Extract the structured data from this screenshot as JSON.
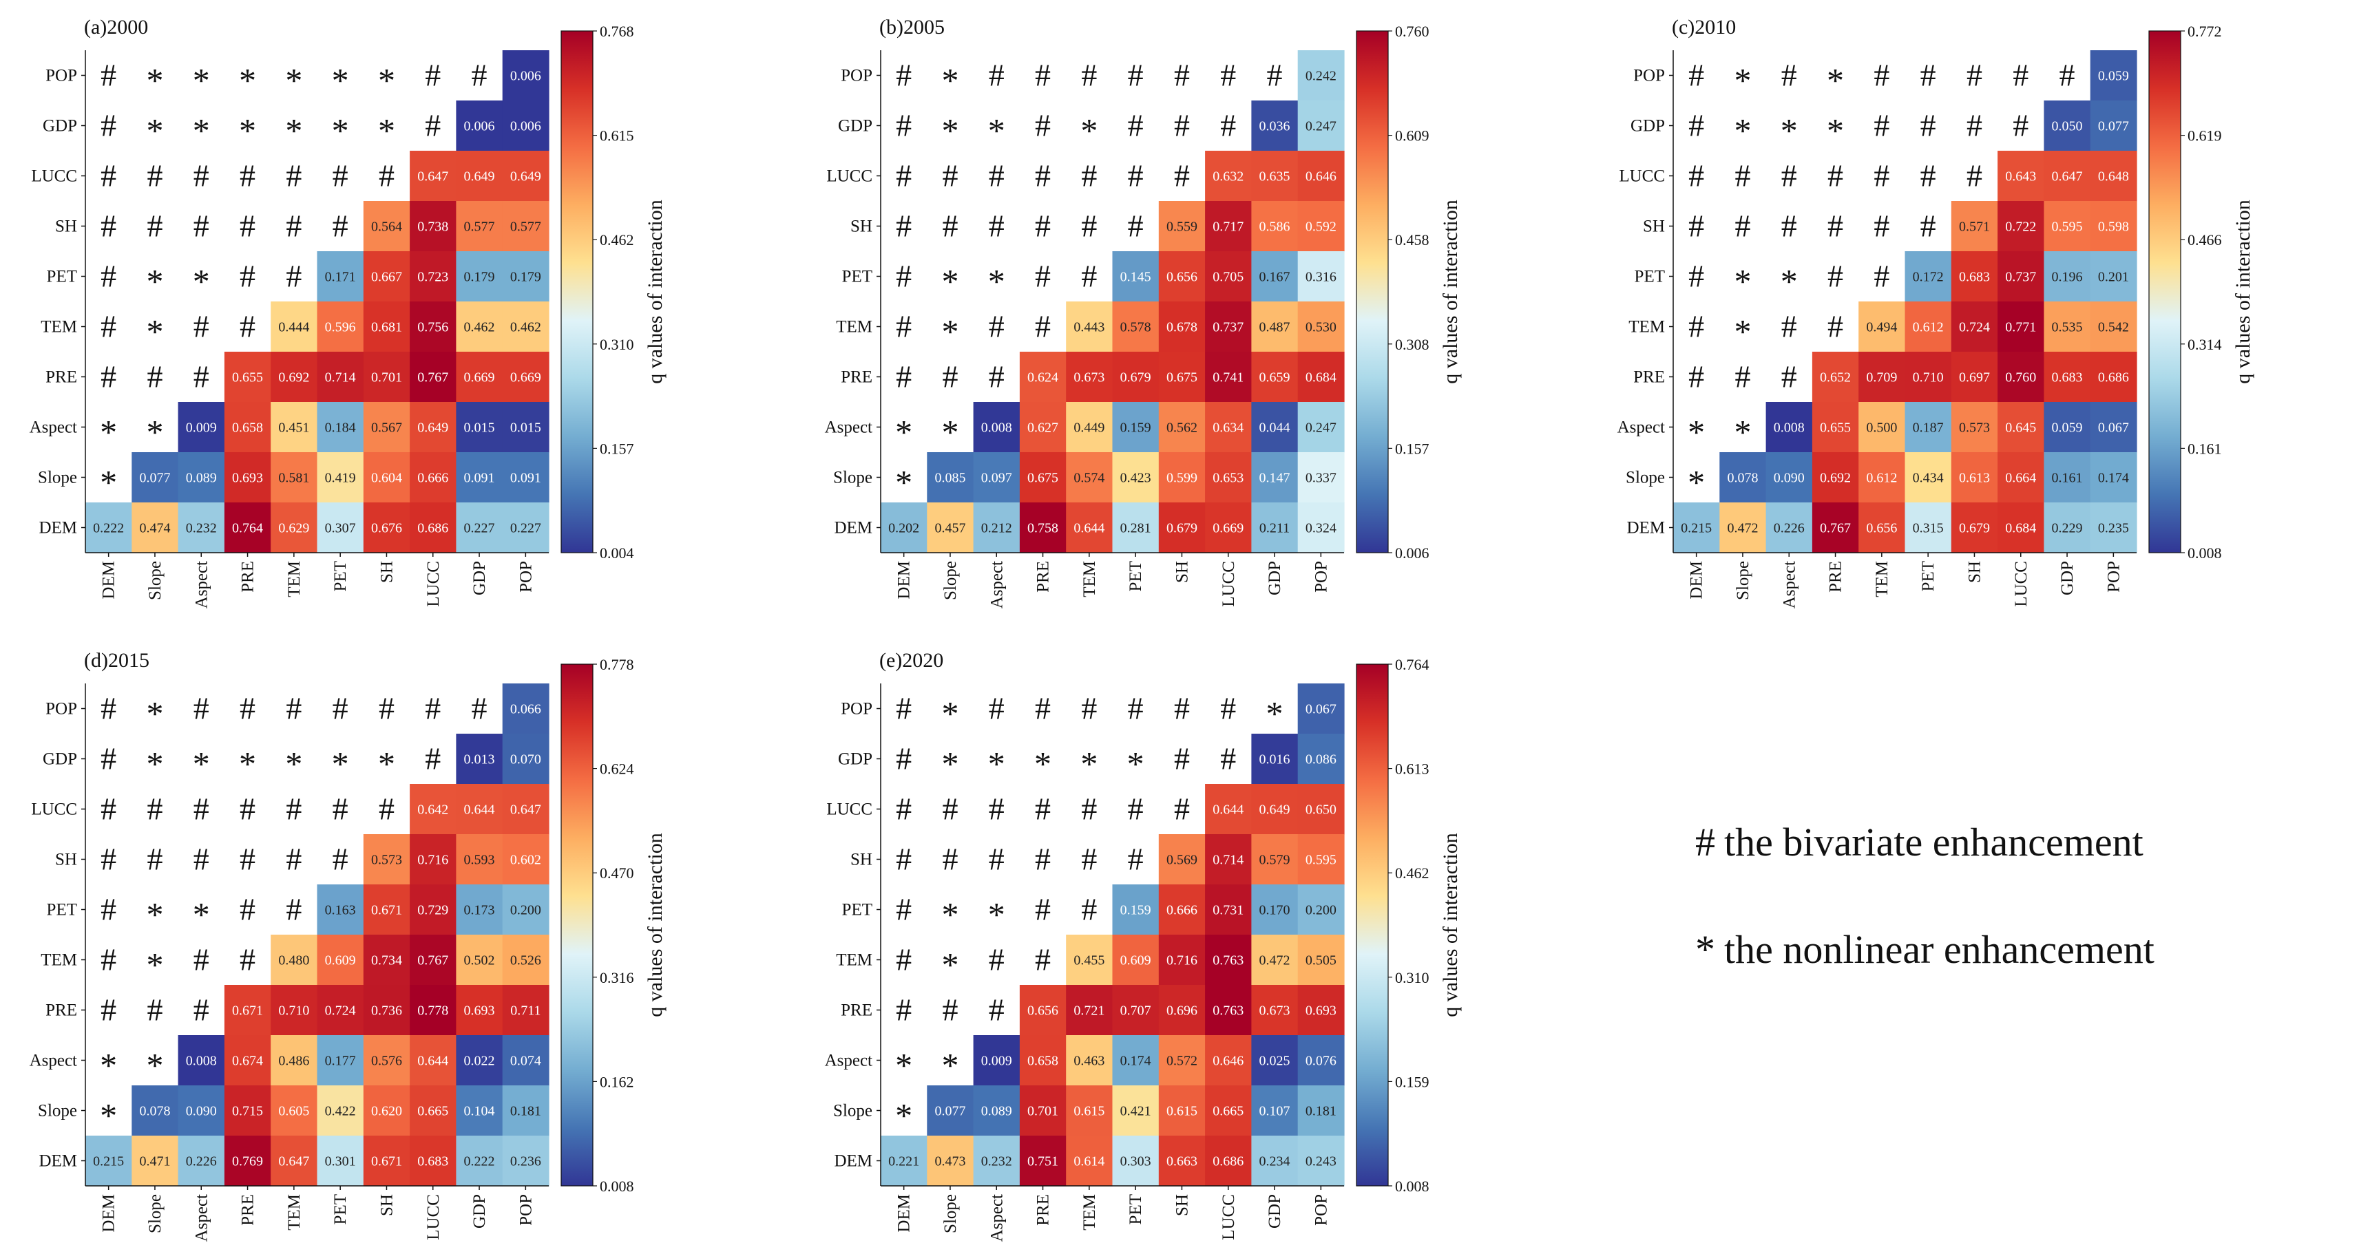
{
  "figure": {
    "colorbar_label": "q values of interaction",
    "colormap": [
      "#313695",
      "#4575b4",
      "#74add1",
      "#abd9e9",
      "#e0f3f8",
      "#fee090",
      "#fdae61",
      "#f46d43",
      "#d73027",
      "#a50026"
    ],
    "legend": [
      {
        "symbol": "#",
        "text": "the bivariate enhancement"
      },
      {
        "symbol": "*",
        "text": "the nonlinear enhancement"
      }
    ]
  },
  "chart_data": [
    {
      "type": "heatmap",
      "title": "(a)2000",
      "x_labels": [
        "DEM",
        "Slope",
        "Aspect",
        "PRE",
        "TEM",
        "PET",
        "SH",
        "LUCC",
        "GDP",
        "POP"
      ],
      "y_labels": [
        "POP",
        "GDP",
        "LUCC",
        "SH",
        "PET",
        "TEM",
        "PRE",
        "Aspect",
        "Slope",
        "DEM"
      ],
      "colorbar_ticks": [
        "0.004",
        "0.157",
        "0.310",
        "0.462",
        "0.615",
        "0.768"
      ],
      "vmin": 0.004,
      "vmax": 0.768,
      "values": [
        [
          "#",
          "*",
          "*",
          "*",
          "*",
          "*",
          "*",
          "#",
          "#",
          "0.006"
        ],
        [
          "#",
          "*",
          "*",
          "*",
          "*",
          "*",
          "*",
          "#",
          "0.006",
          "0.006"
        ],
        [
          "#",
          "#",
          "#",
          "#",
          "#",
          "#",
          "#",
          "0.647",
          "0.649",
          "0.649"
        ],
        [
          "#",
          "#",
          "#",
          "#",
          "#",
          "#",
          "0.564",
          "0.738",
          "0.577",
          "0.577"
        ],
        [
          "#",
          "*",
          "*",
          "#",
          "#",
          "0.171",
          "0.667",
          "0.723",
          "0.179",
          "0.179"
        ],
        [
          "#",
          "*",
          "#",
          "#",
          "0.444",
          "0.596",
          "0.681",
          "0.756",
          "0.462",
          "0.462"
        ],
        [
          "#",
          "#",
          "#",
          "0.655",
          "0.692",
          "0.714",
          "0.701",
          "0.767",
          "0.669",
          "0.669"
        ],
        [
          "*",
          "*",
          "0.009",
          "0.658",
          "0.451",
          "0.184",
          "0.567",
          "0.649",
          "0.015",
          "0.015"
        ],
        [
          "*",
          "0.077",
          "0.089",
          "0.693",
          "0.581",
          "0.419",
          "0.604",
          "0.666",
          "0.091",
          "0.091"
        ],
        [
          "0.222",
          "0.474",
          "0.232",
          "0.764",
          "0.629",
          "0.307",
          "0.676",
          "0.686",
          "0.227",
          "0.227"
        ]
      ]
    },
    {
      "type": "heatmap",
      "title": "(b)2005",
      "x_labels": [
        "DEM",
        "Slope",
        "Aspect",
        "PRE",
        "TEM",
        "PET",
        "SH",
        "LUCC",
        "GDP",
        "POP"
      ],
      "y_labels": [
        "POP",
        "GDP",
        "LUCC",
        "SH",
        "PET",
        "TEM",
        "PRE",
        "Aspect",
        "Slope",
        "DEM"
      ],
      "colorbar_ticks": [
        "0.006",
        "0.157",
        "0.308",
        "0.458",
        "0.609",
        "0.760"
      ],
      "vmin": 0.006,
      "vmax": 0.76,
      "values": [
        [
          "#",
          "*",
          "#",
          "#",
          "#",
          "#",
          "#",
          "#",
          "#",
          "0.242"
        ],
        [
          "#",
          "*",
          "*",
          "#",
          "*",
          "#",
          "#",
          "#",
          "0.036",
          "0.247"
        ],
        [
          "#",
          "#",
          "#",
          "#",
          "#",
          "#",
          "#",
          "0.632",
          "0.635",
          "0.646"
        ],
        [
          "#",
          "#",
          "#",
          "#",
          "#",
          "#",
          "0.559",
          "0.717",
          "0.586",
          "0.592"
        ],
        [
          "#",
          "*",
          "*",
          "#",
          "#",
          "0.145",
          "0.656",
          "0.705",
          "0.167",
          "0.316"
        ],
        [
          "#",
          "*",
          "#",
          "#",
          "0.443",
          "0.578",
          "0.678",
          "0.737",
          "0.487",
          "0.530"
        ],
        [
          "#",
          "#",
          "#",
          "0.624",
          "0.673",
          "0.679",
          "0.675",
          "0.741",
          "0.659",
          "0.684"
        ],
        [
          "*",
          "*",
          "0.008",
          "0.627",
          "0.449",
          "0.159",
          "0.562",
          "0.634",
          "0.044",
          "0.247"
        ],
        [
          "*",
          "0.085",
          "0.097",
          "0.675",
          "0.574",
          "0.423",
          "0.599",
          "0.653",
          "0.147",
          "0.337"
        ],
        [
          "0.202",
          "0.457",
          "0.212",
          "0.758",
          "0.644",
          "0.281",
          "0.679",
          "0.669",
          "0.211",
          "0.324"
        ]
      ]
    },
    {
      "type": "heatmap",
      "title": "(c)2010",
      "x_labels": [
        "DEM",
        "Slope",
        "Aspect",
        "PRE",
        "TEM",
        "PET",
        "SH",
        "LUCC",
        "GDP",
        "POP"
      ],
      "y_labels": [
        "POP",
        "GDP",
        "LUCC",
        "SH",
        "PET",
        "TEM",
        "PRE",
        "Aspect",
        "Slope",
        "DEM"
      ],
      "colorbar_ticks": [
        "0.008",
        "0.161",
        "0.314",
        "0.466",
        "0.619",
        "0.772"
      ],
      "vmin": 0.008,
      "vmax": 0.772,
      "values": [
        [
          "#",
          "*",
          "#",
          "*",
          "#",
          "#",
          "#",
          "#",
          "#",
          "0.059"
        ],
        [
          "#",
          "*",
          "*",
          "*",
          "#",
          "#",
          "#",
          "#",
          "0.050",
          "0.077"
        ],
        [
          "#",
          "#",
          "#",
          "#",
          "#",
          "#",
          "#",
          "0.643",
          "0.647",
          "0.648"
        ],
        [
          "#",
          "#",
          "#",
          "#",
          "#",
          "#",
          "0.571",
          "0.722",
          "0.595",
          "0.598"
        ],
        [
          "#",
          "*",
          "*",
          "#",
          "#",
          "0.172",
          "0.683",
          "0.737",
          "0.196",
          "0.201"
        ],
        [
          "#",
          "*",
          "#",
          "#",
          "0.494",
          "0.612",
          "0.724",
          "0.771",
          "0.535",
          "0.542"
        ],
        [
          "#",
          "#",
          "#",
          "0.652",
          "0.709",
          "0.710",
          "0.697",
          "0.760",
          "0.683",
          "0.686"
        ],
        [
          "*",
          "*",
          "0.008",
          "0.655",
          "0.500",
          "0.187",
          "0.573",
          "0.645",
          "0.059",
          "0.067"
        ],
        [
          "*",
          "0.078",
          "0.090",
          "0.692",
          "0.612",
          "0.434",
          "0.613",
          "0.664",
          "0.161",
          "0.174"
        ],
        [
          "0.215",
          "0.472",
          "0.226",
          "0.767",
          "0.656",
          "0.315",
          "0.679",
          "0.684",
          "0.229",
          "0.235"
        ]
      ]
    },
    {
      "type": "heatmap",
      "title": "(d)2015",
      "x_labels": [
        "DEM",
        "Slope",
        "Aspect",
        "PRE",
        "TEM",
        "PET",
        "SH",
        "LUCC",
        "GDP",
        "POP"
      ],
      "y_labels": [
        "POP",
        "GDP",
        "LUCC",
        "SH",
        "PET",
        "TEM",
        "PRE",
        "Aspect",
        "Slope",
        "DEM"
      ],
      "colorbar_ticks": [
        "0.008",
        "0.162",
        "0.316",
        "0.470",
        "0.624",
        "0.778"
      ],
      "vmin": 0.008,
      "vmax": 0.778,
      "values": [
        [
          "#",
          "*",
          "#",
          "#",
          "#",
          "#",
          "#",
          "#",
          "#",
          "0.066"
        ],
        [
          "#",
          "*",
          "*",
          "*",
          "*",
          "*",
          "*",
          "#",
          "0.013",
          "0.070"
        ],
        [
          "#",
          "#",
          "#",
          "#",
          "#",
          "#",
          "#",
          "0.642",
          "0.644",
          "0.647"
        ],
        [
          "#",
          "#",
          "#",
          "#",
          "#",
          "#",
          "0.573",
          "0.716",
          "0.593",
          "0.602"
        ],
        [
          "#",
          "*",
          "*",
          "#",
          "#",
          "0.163",
          "0.671",
          "0.729",
          "0.173",
          "0.200"
        ],
        [
          "#",
          "*",
          "#",
          "#",
          "0.480",
          "0.609",
          "0.734",
          "0.767",
          "0.502",
          "0.526"
        ],
        [
          "#",
          "#",
          "#",
          "0.671",
          "0.710",
          "0.724",
          "0.736",
          "0.778",
          "0.693",
          "0.711"
        ],
        [
          "*",
          "*",
          "0.008",
          "0.674",
          "0.486",
          "0.177",
          "0.576",
          "0.644",
          "0.022",
          "0.074"
        ],
        [
          "*",
          "0.078",
          "0.090",
          "0.715",
          "0.605",
          "0.422",
          "0.620",
          "0.665",
          "0.104",
          "0.181"
        ],
        [
          "0.215",
          "0.471",
          "0.226",
          "0.769",
          "0.647",
          "0.301",
          "0.671",
          "0.683",
          "0.222",
          "0.236"
        ]
      ]
    },
    {
      "type": "heatmap",
      "title": "(e)2020",
      "x_labels": [
        "DEM",
        "Slope",
        "Aspect",
        "PRE",
        "TEM",
        "PET",
        "SH",
        "LUCC",
        "GDP",
        "POP"
      ],
      "y_labels": [
        "POP",
        "GDP",
        "LUCC",
        "SH",
        "PET",
        "TEM",
        "PRE",
        "Aspect",
        "Slope",
        "DEM"
      ],
      "colorbar_ticks": [
        "0.008",
        "0.159",
        "0.310",
        "0.462",
        "0.613",
        "0.764"
      ],
      "vmin": 0.008,
      "vmax": 0.764,
      "values": [
        [
          "#",
          "*",
          "#",
          "#",
          "#",
          "#",
          "#",
          "#",
          "*",
          "0.067"
        ],
        [
          "#",
          "*",
          "*",
          "*",
          "*",
          "*",
          "#",
          "#",
          "0.016",
          "0.086"
        ],
        [
          "#",
          "#",
          "#",
          "#",
          "#",
          "#",
          "#",
          "0.644",
          "0.649",
          "0.650"
        ],
        [
          "#",
          "#",
          "#",
          "#",
          "#",
          "#",
          "0.569",
          "0.714",
          "0.579",
          "0.595"
        ],
        [
          "#",
          "*",
          "*",
          "#",
          "#",
          "0.159",
          "0.666",
          "0.731",
          "0.170",
          "0.200"
        ],
        [
          "#",
          "*",
          "#",
          "#",
          "0.455",
          "0.609",
          "0.716",
          "0.763",
          "0.472",
          "0.505"
        ],
        [
          "#",
          "#",
          "#",
          "0.656",
          "0.721",
          "0.707",
          "0.696",
          "0.763",
          "0.673",
          "0.693"
        ],
        [
          "*",
          "*",
          "0.009",
          "0.658",
          "0.463",
          "0.174",
          "0.572",
          "0.646",
          "0.025",
          "0.076"
        ],
        [
          "*",
          "0.077",
          "0.089",
          "0.701",
          "0.615",
          "0.421",
          "0.615",
          "0.665",
          "0.107",
          "0.181"
        ],
        [
          "0.221",
          "0.473",
          "0.232",
          "0.751",
          "0.614",
          "0.303",
          "0.663",
          "0.686",
          "0.234",
          "0.243"
        ]
      ]
    }
  ]
}
